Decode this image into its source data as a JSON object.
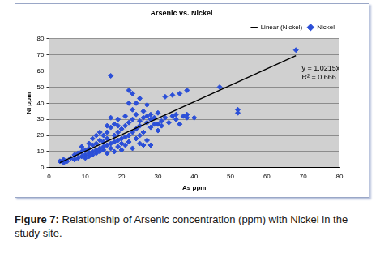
{
  "chart_data": {
    "type": "scatter",
    "title": "Arsenic vs. Nickel",
    "x_label": "As ppm",
    "y_label": "Ni ppm",
    "caption_label": "Figure 7:",
    "caption": "Relationship of Arsenic concentration (ppm) with Nickel in the study site.",
    "annotations": [
      "y = 1.0215x",
      "R² = 0.666"
    ],
    "xlim": [
      0,
      80
    ],
    "xticks": [
      0,
      10,
      20,
      30,
      40,
      50,
      60,
      70,
      80
    ],
    "ylim": [
      0,
      80
    ],
    "yticks": [
      0,
      10,
      20,
      30,
      40,
      50,
      60,
      70,
      80
    ],
    "grid": "y",
    "legend": "top-right",
    "series": [
      {
        "name": "Nickel",
        "type": "scatter",
        "color": "#2b4fd8",
        "marker": "diamond",
        "x": [
          3,
          4,
          4,
          5,
          6,
          7,
          7,
          8,
          8,
          9,
          9,
          10,
          10,
          10,
          11,
          11,
          11,
          12,
          12,
          12,
          13,
          13,
          13,
          14,
          14,
          14,
          15,
          15,
          15,
          15,
          16,
          16,
          16,
          16,
          17,
          17,
          17,
          17,
          18,
          18,
          18,
          18,
          19,
          19,
          19,
          19,
          20,
          20,
          20,
          20,
          21,
          21,
          21,
          21,
          22,
          22,
          22,
          22,
          23,
          23,
          23,
          23,
          23,
          24,
          24,
          24,
          25,
          25,
          25,
          25,
          26,
          26,
          26,
          26,
          27,
          27,
          27,
          28,
          28,
          28,
          29,
          29,
          30,
          30,
          30,
          31,
          31,
          32,
          32,
          33,
          34,
          34,
          35,
          35,
          36,
          36,
          37,
          38,
          38,
          38,
          40,
          47,
          52,
          52,
          68,
          13,
          14,
          11,
          9,
          12,
          17,
          19,
          16,
          25,
          27,
          28,
          24,
          22
        ],
        "values": [
          4,
          3,
          5,
          4,
          6,
          5,
          8,
          6,
          9,
          7,
          10,
          8,
          11,
          6,
          9,
          12,
          7,
          10,
          14,
          8,
          11,
          15,
          9,
          12,
          17,
          10,
          13,
          20,
          11,
          16,
          14,
          22,
          9,
          18,
          57,
          15,
          25,
          12,
          16,
          20,
          27,
          10,
          17,
          22,
          13,
          30,
          18,
          24,
          15,
          11,
          19,
          26,
          32,
          14,
          48,
          20,
          28,
          16,
          46,
          22,
          30,
          12,
          36,
          24,
          18,
          33,
          43,
          26,
          29,
          20,
          31,
          22,
          35,
          14,
          39,
          28,
          32,
          30,
          25,
          33,
          31,
          27,
          27,
          34,
          23,
          26,
          29,
          44,
          31,
          28,
          45,
          32,
          30,
          33,
          46,
          27,
          32,
          48,
          33,
          31,
          31,
          50,
          36,
          34,
          73,
          20,
          22,
          15,
          13,
          18,
          31,
          26,
          26,
          15,
          17,
          14,
          40,
          40
        ]
      },
      {
        "name": "Linear (Nickel)",
        "type": "line",
        "color": "#000000",
        "line_style": "solid",
        "x": [
          3,
          68
        ],
        "values": [
          3.1,
          69.5
        ]
      }
    ]
  }
}
